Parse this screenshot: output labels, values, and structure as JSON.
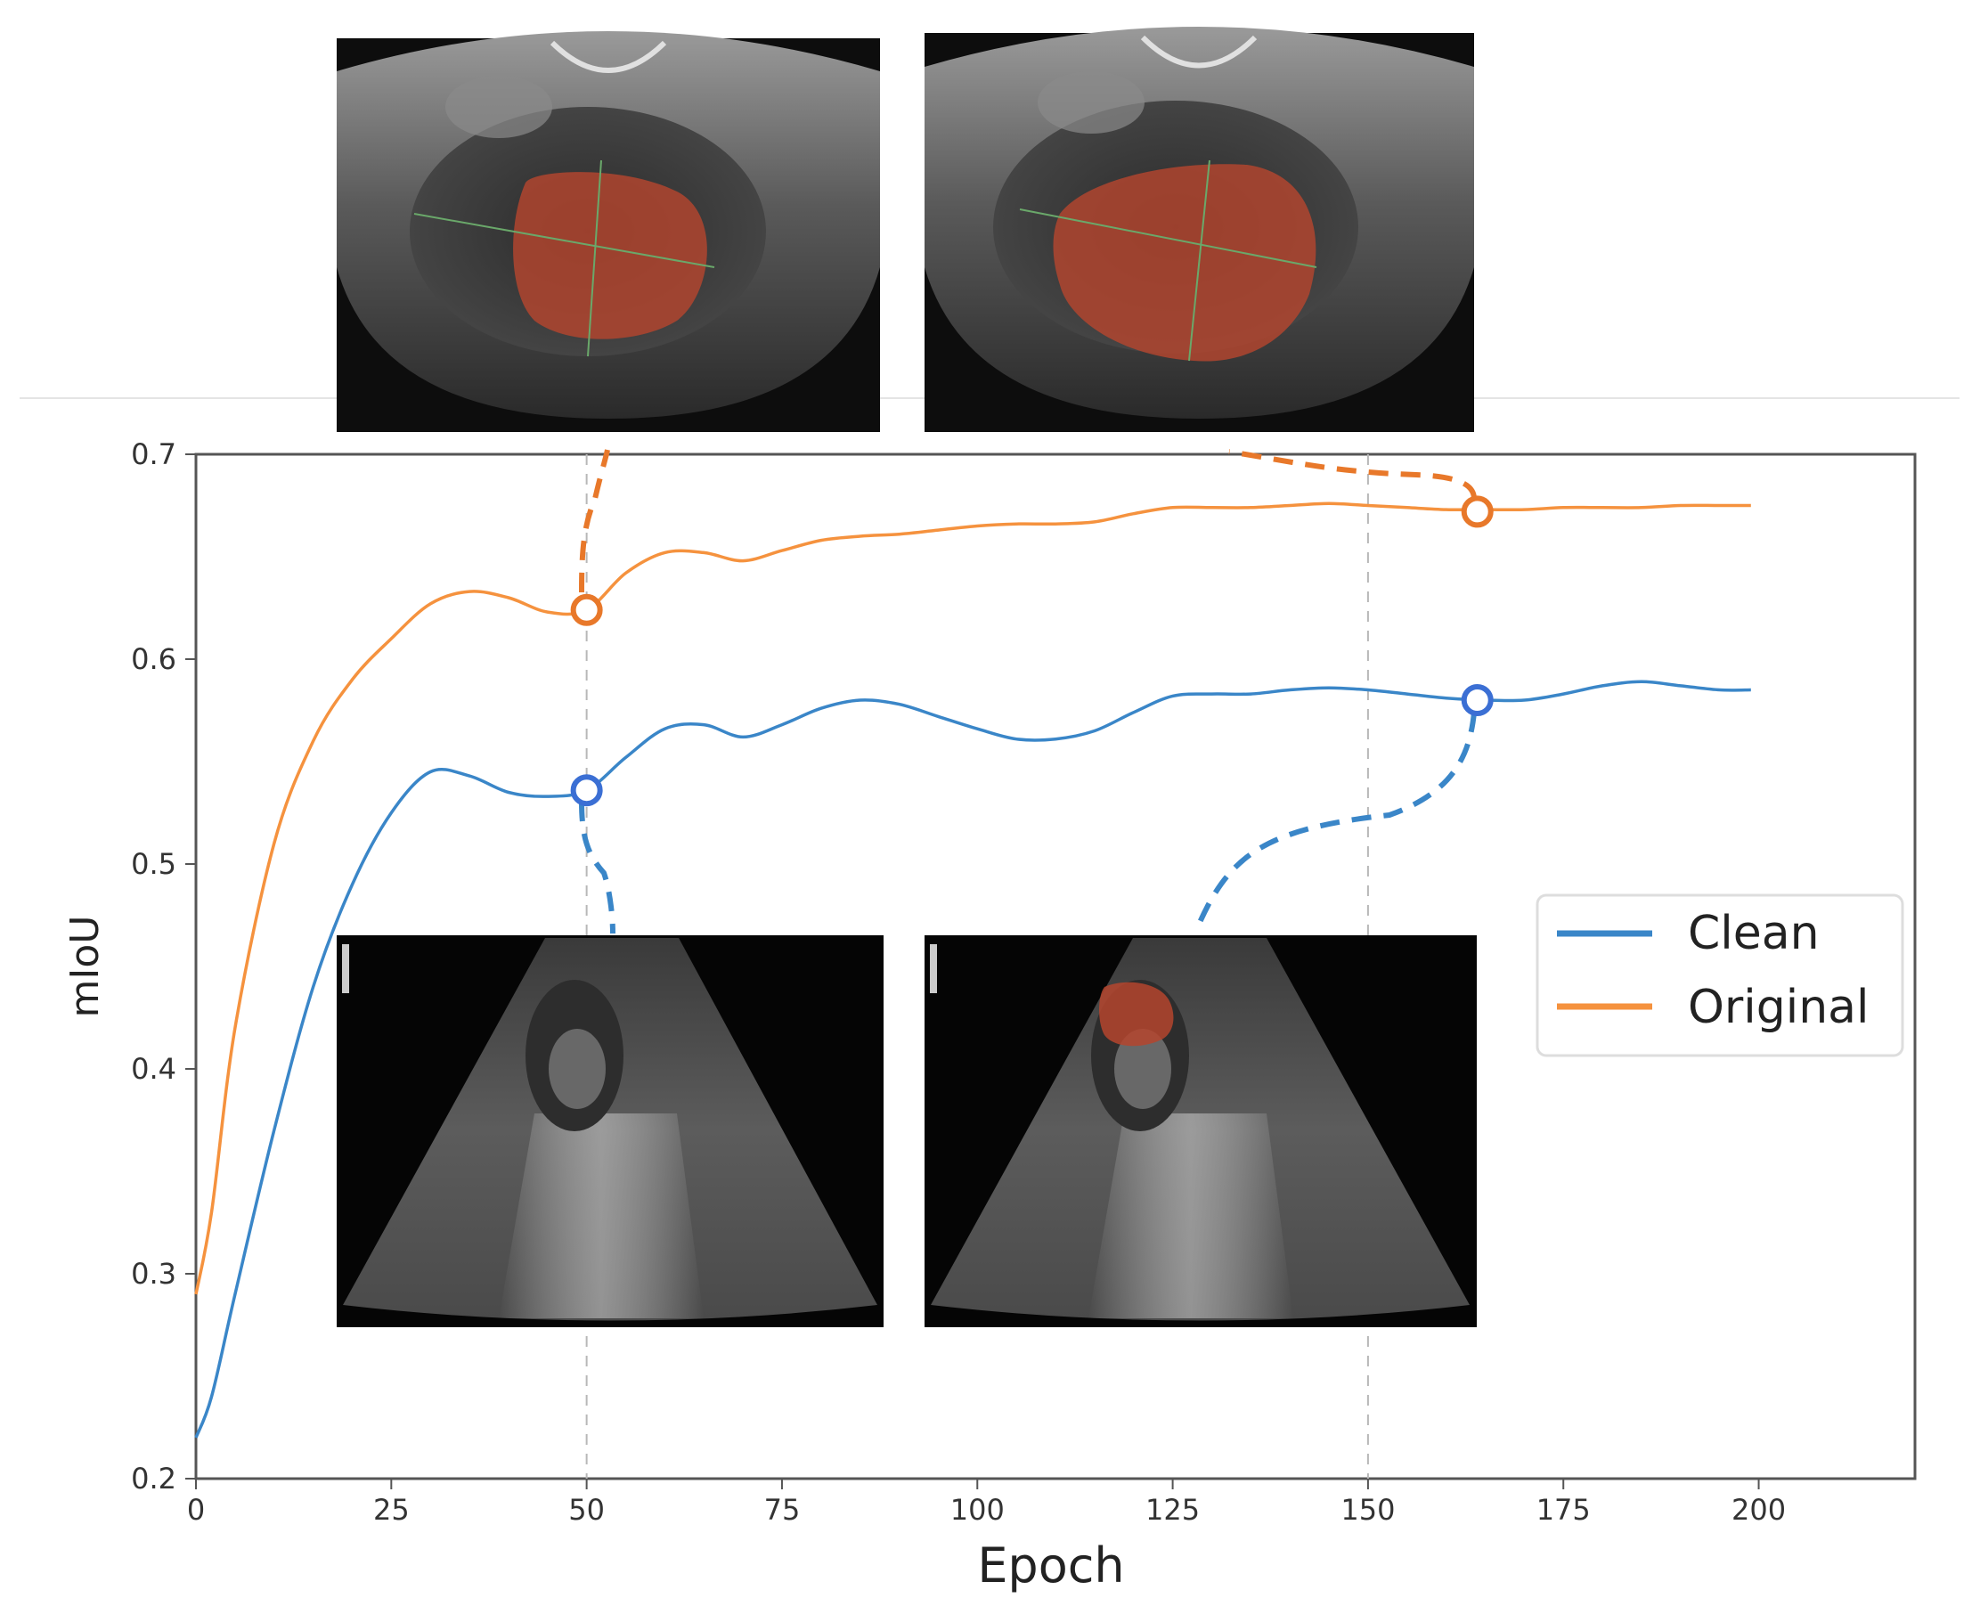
{
  "chart_data": {
    "type": "line",
    "xlabel": "Epoch",
    "ylabel": "mIoU",
    "xlim": [
      0,
      220
    ],
    "ylim": [
      0.2,
      0.7
    ],
    "x_ticks": [
      0,
      25,
      50,
      75,
      100,
      125,
      150,
      175,
      200
    ],
    "y_ticks": [
      0.2,
      0.3,
      0.4,
      0.5,
      0.6,
      0.7
    ],
    "grid": false,
    "legend_position": "right",
    "reference_lines_x": [
      50,
      150
    ],
    "series": [
      {
        "name": "Clean",
        "color": "#3a86c8",
        "x": [
          0,
          2,
          5,
          10,
          15,
          20,
          25,
          30,
          35,
          40,
          45,
          50,
          55,
          60,
          65,
          70,
          75,
          80,
          85,
          90,
          95,
          100,
          105,
          110,
          115,
          120,
          125,
          130,
          135,
          140,
          145,
          150,
          155,
          160,
          165,
          170,
          175,
          180,
          185,
          190,
          195,
          199
        ],
        "y": [
          0.22,
          0.24,
          0.29,
          0.37,
          0.44,
          0.49,
          0.525,
          0.545,
          0.543,
          0.535,
          0.533,
          0.536,
          0.552,
          0.566,
          0.568,
          0.562,
          0.568,
          0.576,
          0.58,
          0.578,
          0.572,
          0.566,
          0.561,
          0.561,
          0.565,
          0.574,
          0.582,
          0.583,
          0.583,
          0.585,
          0.586,
          0.585,
          0.583,
          0.581,
          0.58,
          0.58,
          0.583,
          0.587,
          0.589,
          0.587,
          0.585,
          0.585
        ]
      },
      {
        "name": "Original",
        "color": "#f5923e",
        "x": [
          0,
          2,
          5,
          10,
          15,
          20,
          25,
          30,
          35,
          40,
          45,
          50,
          55,
          60,
          65,
          70,
          75,
          80,
          85,
          90,
          95,
          100,
          105,
          110,
          115,
          120,
          125,
          130,
          135,
          140,
          145,
          150,
          155,
          160,
          165,
          170,
          175,
          180,
          185,
          190,
          195,
          199
        ],
        "y": [
          0.29,
          0.33,
          0.42,
          0.51,
          0.56,
          0.59,
          0.61,
          0.627,
          0.633,
          0.63,
          0.623,
          0.624,
          0.642,
          0.652,
          0.652,
          0.648,
          0.653,
          0.658,
          0.66,
          0.661,
          0.663,
          0.665,
          0.666,
          0.666,
          0.667,
          0.671,
          0.674,
          0.674,
          0.674,
          0.675,
          0.676,
          0.675,
          0.674,
          0.673,
          0.673,
          0.673,
          0.674,
          0.674,
          0.674,
          0.675,
          0.675,
          0.675
        ]
      }
    ],
    "highlighted_points": [
      {
        "series": "Original",
        "x": 50,
        "y": 0.624,
        "color": "#e8782a"
      },
      {
        "series": "Original",
        "x": 164,
        "y": 0.672,
        "color": "#e8782a"
      },
      {
        "series": "Clean",
        "x": 50,
        "y": 0.536,
        "color": "#3b6fd4"
      },
      {
        "series": "Clean",
        "x": 164,
        "y": 0.58,
        "color": "#3b6fd4"
      }
    ]
  },
  "insets": [
    {
      "name": "inset-original-epoch50",
      "view": "cone-scan",
      "overlay_color": "#b5452e"
    },
    {
      "name": "inset-original-epoch164",
      "view": "cone-scan",
      "overlay_color": "#b5452e"
    },
    {
      "name": "inset-clean-epoch50",
      "view": "sector-scan",
      "overlay_color": ""
    },
    {
      "name": "inset-clean-epoch164",
      "view": "sector-scan",
      "overlay_color": "#b5452e"
    }
  ]
}
